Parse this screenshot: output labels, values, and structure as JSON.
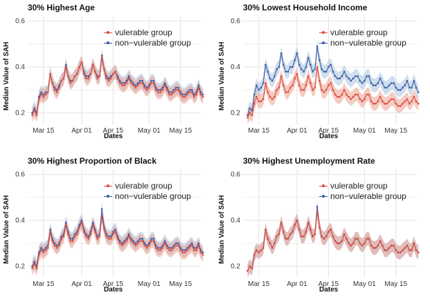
{
  "colors": {
    "vulnerable": "#d9493a",
    "vulnerable_band": "#efa08f",
    "nonvulnerable": "#3b5aa6",
    "nonvulnerable_band": "#a9c5de",
    "grid": "#e3e3e3"
  },
  "legend": {
    "vulnerable": "vulerable group",
    "nonvulnerable": "non−vulerable group"
  },
  "ylabel": "Median Value of SAH",
  "xlabel": "Dates",
  "chart_data": [
    {
      "type": "line",
      "title": "30% Highest Age",
      "xlabel": "Dates",
      "ylabel": "Median Value of SAH",
      "x_range": [
        "2020-03-08",
        "2020-05-24"
      ],
      "x_ticks": [
        "Mar 15",
        "Apr 01",
        "Apr 15",
        "May 01",
        "May 15"
      ],
      "ylim": [
        0.15,
        0.62
      ],
      "y_ticks": [
        0.2,
        0.4,
        0.6
      ],
      "legend_position": "top-right",
      "series": [
        {
          "name": "vulerable group",
          "values": [
            0.19,
            0.21,
            0.19,
            0.26,
            0.28,
            0.27,
            0.28,
            0.29,
            0.37,
            0.33,
            0.3,
            0.29,
            0.31,
            0.34,
            0.35,
            0.4,
            0.36,
            0.33,
            0.34,
            0.36,
            0.37,
            0.4,
            0.42,
            0.37,
            0.35,
            0.35,
            0.37,
            0.41,
            0.38,
            0.35,
            0.36,
            0.44,
            0.39,
            0.35,
            0.34,
            0.35,
            0.37,
            0.38,
            0.35,
            0.33,
            0.32,
            0.32,
            0.33,
            0.35,
            0.33,
            0.32,
            0.31,
            0.32,
            0.33,
            0.33,
            0.31,
            0.3,
            0.31,
            0.33,
            0.33,
            0.3,
            0.29,
            0.29,
            0.3,
            0.32,
            0.3,
            0.28,
            0.28,
            0.29,
            0.3,
            0.3,
            0.28,
            0.27,
            0.27,
            0.28,
            0.29,
            0.29,
            0.27,
            0.28,
            0.31,
            0.28,
            0.27
          ]
        },
        {
          "name": "non−vulerable group",
          "values": [
            0.2,
            0.22,
            0.2,
            0.27,
            0.29,
            0.28,
            0.29,
            0.29,
            0.37,
            0.33,
            0.31,
            0.3,
            0.32,
            0.34,
            0.35,
            0.41,
            0.36,
            0.34,
            0.34,
            0.36,
            0.37,
            0.4,
            0.42,
            0.38,
            0.36,
            0.36,
            0.37,
            0.41,
            0.38,
            0.36,
            0.36,
            0.45,
            0.39,
            0.36,
            0.35,
            0.36,
            0.37,
            0.38,
            0.36,
            0.34,
            0.33,
            0.33,
            0.34,
            0.36,
            0.34,
            0.33,
            0.32,
            0.33,
            0.34,
            0.34,
            0.32,
            0.31,
            0.32,
            0.34,
            0.34,
            0.31,
            0.3,
            0.3,
            0.31,
            0.33,
            0.31,
            0.29,
            0.29,
            0.3,
            0.31,
            0.31,
            0.29,
            0.28,
            0.28,
            0.29,
            0.3,
            0.3,
            0.28,
            0.29,
            0.32,
            0.29,
            0.28
          ]
        }
      ]
    },
    {
      "type": "line",
      "title": "30% Lowest Household Income",
      "xlabel": "Dates",
      "ylabel": "Median Value of SAH",
      "x_range": [
        "2020-03-08",
        "2020-05-24"
      ],
      "x_ticks": [
        "Mar 15",
        "Apr 01",
        "Apr 15",
        "May 01",
        "May 15"
      ],
      "ylim": [
        0.15,
        0.62
      ],
      "y_ticks": [
        0.2,
        0.4,
        0.6
      ],
      "legend_position": "top-right",
      "series": [
        {
          "name": "vulerable group",
          "values": [
            0.18,
            0.2,
            0.19,
            0.24,
            0.27,
            0.25,
            0.25,
            0.26,
            0.33,
            0.29,
            0.27,
            0.26,
            0.27,
            0.3,
            0.31,
            0.36,
            0.32,
            0.29,
            0.29,
            0.31,
            0.32,
            0.35,
            0.37,
            0.32,
            0.3,
            0.3,
            0.32,
            0.36,
            0.33,
            0.3,
            0.31,
            0.4,
            0.34,
            0.3,
            0.29,
            0.3,
            0.32,
            0.33,
            0.3,
            0.28,
            0.27,
            0.27,
            0.28,
            0.3,
            0.28,
            0.27,
            0.26,
            0.27,
            0.28,
            0.28,
            0.26,
            0.25,
            0.26,
            0.28,
            0.28,
            0.25,
            0.24,
            0.24,
            0.25,
            0.27,
            0.25,
            0.24,
            0.24,
            0.25,
            0.26,
            0.26,
            0.24,
            0.23,
            0.23,
            0.24,
            0.25,
            0.26,
            0.24,
            0.25,
            0.27,
            0.25,
            0.24
          ]
        },
        {
          "name": "non−vulerable group",
          "values": [
            0.19,
            0.22,
            0.21,
            0.28,
            0.32,
            0.3,
            0.31,
            0.33,
            0.41,
            0.38,
            0.35,
            0.34,
            0.36,
            0.39,
            0.4,
            0.46,
            0.41,
            0.38,
            0.38,
            0.4,
            0.4,
            0.43,
            0.46,
            0.41,
            0.39,
            0.38,
            0.4,
            0.44,
            0.41,
            0.38,
            0.39,
            0.49,
            0.43,
            0.39,
            0.38,
            0.38,
            0.4,
            0.41,
            0.38,
            0.36,
            0.35,
            0.35,
            0.36,
            0.38,
            0.36,
            0.35,
            0.34,
            0.35,
            0.36,
            0.36,
            0.34,
            0.33,
            0.34,
            0.36,
            0.36,
            0.33,
            0.32,
            0.32,
            0.33,
            0.35,
            0.33,
            0.31,
            0.31,
            0.32,
            0.33,
            0.33,
            0.31,
            0.3,
            0.3,
            0.31,
            0.32,
            0.34,
            0.31,
            0.31,
            0.34,
            0.31,
            0.29
          ]
        }
      ]
    },
    {
      "type": "line",
      "title": "30% Highest Proportion of Black",
      "xlabel": "Dates",
      "ylabel": "Median Value of SAH",
      "x_range": [
        "2020-03-08",
        "2020-05-24"
      ],
      "x_ticks": [
        "Mar 15",
        "Apr 01",
        "Apr 15",
        "May 01",
        "May 15"
      ],
      "ylim": [
        0.15,
        0.62
      ],
      "y_ticks": [
        0.2,
        0.4,
        0.6
      ],
      "legend_position": "top-right",
      "series": [
        {
          "name": "vulerable group",
          "values": [
            0.19,
            0.21,
            0.19,
            0.25,
            0.27,
            0.26,
            0.27,
            0.28,
            0.35,
            0.31,
            0.29,
            0.28,
            0.29,
            0.32,
            0.33,
            0.38,
            0.34,
            0.31,
            0.31,
            0.33,
            0.34,
            0.37,
            0.39,
            0.35,
            0.33,
            0.32,
            0.34,
            0.38,
            0.35,
            0.32,
            0.33,
            0.42,
            0.36,
            0.33,
            0.32,
            0.32,
            0.34,
            0.35,
            0.32,
            0.3,
            0.29,
            0.3,
            0.31,
            0.33,
            0.31,
            0.3,
            0.29,
            0.3,
            0.31,
            0.31,
            0.29,
            0.28,
            0.29,
            0.31,
            0.31,
            0.28,
            0.27,
            0.27,
            0.28,
            0.3,
            0.28,
            0.27,
            0.27,
            0.28,
            0.29,
            0.29,
            0.27,
            0.26,
            0.26,
            0.27,
            0.28,
            0.29,
            0.27,
            0.27,
            0.29,
            0.26,
            0.25
          ]
        },
        {
          "name": "non−vulerable group",
          "values": [
            0.2,
            0.22,
            0.2,
            0.26,
            0.28,
            0.27,
            0.28,
            0.29,
            0.36,
            0.32,
            0.3,
            0.29,
            0.3,
            0.33,
            0.34,
            0.39,
            0.35,
            0.32,
            0.32,
            0.34,
            0.35,
            0.38,
            0.4,
            0.36,
            0.34,
            0.33,
            0.35,
            0.39,
            0.36,
            0.33,
            0.34,
            0.45,
            0.37,
            0.34,
            0.33,
            0.33,
            0.35,
            0.36,
            0.33,
            0.31,
            0.3,
            0.31,
            0.32,
            0.34,
            0.32,
            0.31,
            0.3,
            0.31,
            0.32,
            0.32,
            0.3,
            0.29,
            0.3,
            0.32,
            0.32,
            0.29,
            0.28,
            0.28,
            0.29,
            0.31,
            0.29,
            0.28,
            0.28,
            0.29,
            0.3,
            0.3,
            0.28,
            0.27,
            0.27,
            0.28,
            0.29,
            0.3,
            0.28,
            0.28,
            0.3,
            0.27,
            0.26
          ]
        }
      ]
    },
    {
      "type": "line",
      "title": "30% Highest Unemployment Rate",
      "xlabel": "Dates",
      "ylabel": "Median Value of SAH",
      "x_range": [
        "2020-03-08",
        "2020-05-24"
      ],
      "x_ticks": [
        "Mar 15",
        "Apr 01",
        "Apr 15",
        "May 01",
        "May 15"
      ],
      "ylim": [
        0.15,
        0.62
      ],
      "y_ticks": [
        0.2,
        0.4,
        0.6
      ],
      "legend_position": "top-right",
      "series": [
        {
          "name": "vulerable group",
          "values": [
            0.18,
            0.2,
            0.19,
            0.25,
            0.27,
            0.26,
            0.27,
            0.28,
            0.36,
            0.32,
            0.3,
            0.28,
            0.3,
            0.33,
            0.34,
            0.39,
            0.35,
            0.32,
            0.32,
            0.34,
            0.35,
            0.38,
            0.4,
            0.36,
            0.33,
            0.33,
            0.35,
            0.39,
            0.36,
            0.33,
            0.34,
            0.44,
            0.37,
            0.33,
            0.32,
            0.33,
            0.35,
            0.36,
            0.33,
            0.31,
            0.3,
            0.3,
            0.31,
            0.34,
            0.32,
            0.3,
            0.29,
            0.3,
            0.32,
            0.32,
            0.3,
            0.29,
            0.3,
            0.32,
            0.32,
            0.29,
            0.28,
            0.28,
            0.29,
            0.31,
            0.29,
            0.27,
            0.27,
            0.28,
            0.29,
            0.29,
            0.27,
            0.26,
            0.26,
            0.27,
            0.28,
            0.29,
            0.27,
            0.27,
            0.3,
            0.27,
            0.26
          ]
        },
        {
          "name": "non−vulerable group",
          "values": [
            0.18,
            0.2,
            0.19,
            0.25,
            0.27,
            0.26,
            0.27,
            0.28,
            0.36,
            0.32,
            0.3,
            0.28,
            0.3,
            0.33,
            0.34,
            0.39,
            0.35,
            0.32,
            0.32,
            0.34,
            0.35,
            0.38,
            0.4,
            0.36,
            0.33,
            0.33,
            0.35,
            0.39,
            0.36,
            0.33,
            0.34,
            0.46,
            0.37,
            0.33,
            0.32,
            0.33,
            0.35,
            0.36,
            0.33,
            0.31,
            0.3,
            0.3,
            0.31,
            0.34,
            0.32,
            0.3,
            0.29,
            0.3,
            0.32,
            0.32,
            0.3,
            0.29,
            0.3,
            0.32,
            0.32,
            0.29,
            0.28,
            0.28,
            0.29,
            0.31,
            0.29,
            0.27,
            0.27,
            0.28,
            0.29,
            0.29,
            0.27,
            0.26,
            0.26,
            0.27,
            0.28,
            0.29,
            0.27,
            0.27,
            0.3,
            0.27,
            0.26
          ]
        }
      ]
    }
  ]
}
